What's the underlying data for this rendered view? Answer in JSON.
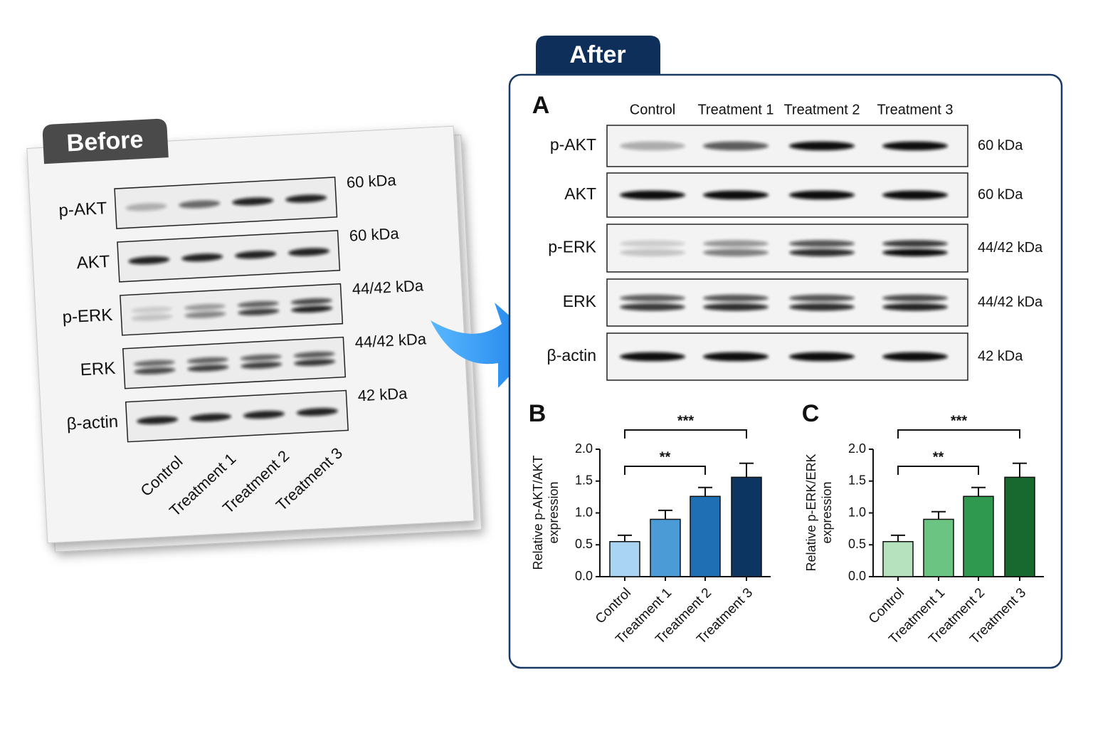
{
  "before": {
    "label": "Before",
    "blots": [
      {
        "protein": "p-AKT",
        "size": "60 kDa"
      },
      {
        "protein": "AKT",
        "size": "60 kDa"
      },
      {
        "protein": "p-ERK",
        "size": "44/42 kDa"
      },
      {
        "protein": "ERK",
        "size": "44/42 kDa"
      },
      {
        "protein": "β-actin",
        "size": "42 kDa"
      }
    ],
    "lanes": [
      "Control",
      "Treatment 1",
      "Treatment 2",
      "Treatment 3"
    ]
  },
  "after": {
    "label": "After",
    "panel": "A",
    "lanes": [
      "Control",
      "Treatment 1",
      "Treatment 2",
      "Treatment 3"
    ],
    "blots": [
      {
        "protein": "p-AKT",
        "size": "60 kDa"
      },
      {
        "protein": "AKT",
        "size": "60 kDa"
      },
      {
        "protein": "p-ERK",
        "size": "44/42 kDa"
      },
      {
        "protein": "ERK",
        "size": "44/42 kDa"
      },
      {
        "protein": "β-actin",
        "size": "42 kDa"
      }
    ]
  },
  "chart_data": [
    {
      "type": "bar",
      "panel": "B",
      "ylabel": [
        "Relative p-AKT/AKT",
        "expression"
      ],
      "categories": [
        "Control",
        "Treatment 1",
        "Treatment 2",
        "Treatment 3"
      ],
      "values": [
        0.55,
        0.9,
        1.26,
        1.56
      ],
      "errors": [
        0.1,
        0.14,
        0.14,
        0.22
      ],
      "colors": [
        "#a9d5f2",
        "#4a9bd6",
        "#1f6fb5",
        "#0d3561"
      ],
      "ylim": [
        0,
        2
      ],
      "yticks": [
        {
          "value": 0,
          "label": "0.0"
        },
        {
          "value": 0.5,
          "label": "0.5"
        },
        {
          "value": 1,
          "label": "1.0"
        },
        {
          "value": 1.5,
          "label": "1.5"
        },
        {
          "value": 2,
          "label": "2.0"
        }
      ],
      "significance": [
        "**",
        "***"
      ]
    },
    {
      "type": "bar",
      "panel": "C",
      "ylabel": [
        "Relative p-ERK/ERK",
        "expression"
      ],
      "categories": [
        "Control",
        "Treatment 1",
        "Treatment 2",
        "Treatment 3"
      ],
      "values": [
        0.55,
        0.9,
        1.26,
        1.56
      ],
      "errors": [
        0.1,
        0.12,
        0.14,
        0.22
      ],
      "colors": [
        "#b6e3be",
        "#6cc483",
        "#2f9a4f",
        "#17692f"
      ],
      "ylim": [
        0,
        2
      ],
      "yticks": [
        {
          "value": 0,
          "label": "0.0"
        },
        {
          "value": 0.5,
          "label": "0.5"
        },
        {
          "value": 1,
          "label": "1.0"
        },
        {
          "value": 1.5,
          "label": "1.5"
        },
        {
          "value": 2,
          "label": "2.0"
        }
      ],
      "significance": [
        "**",
        "***"
      ]
    }
  ]
}
